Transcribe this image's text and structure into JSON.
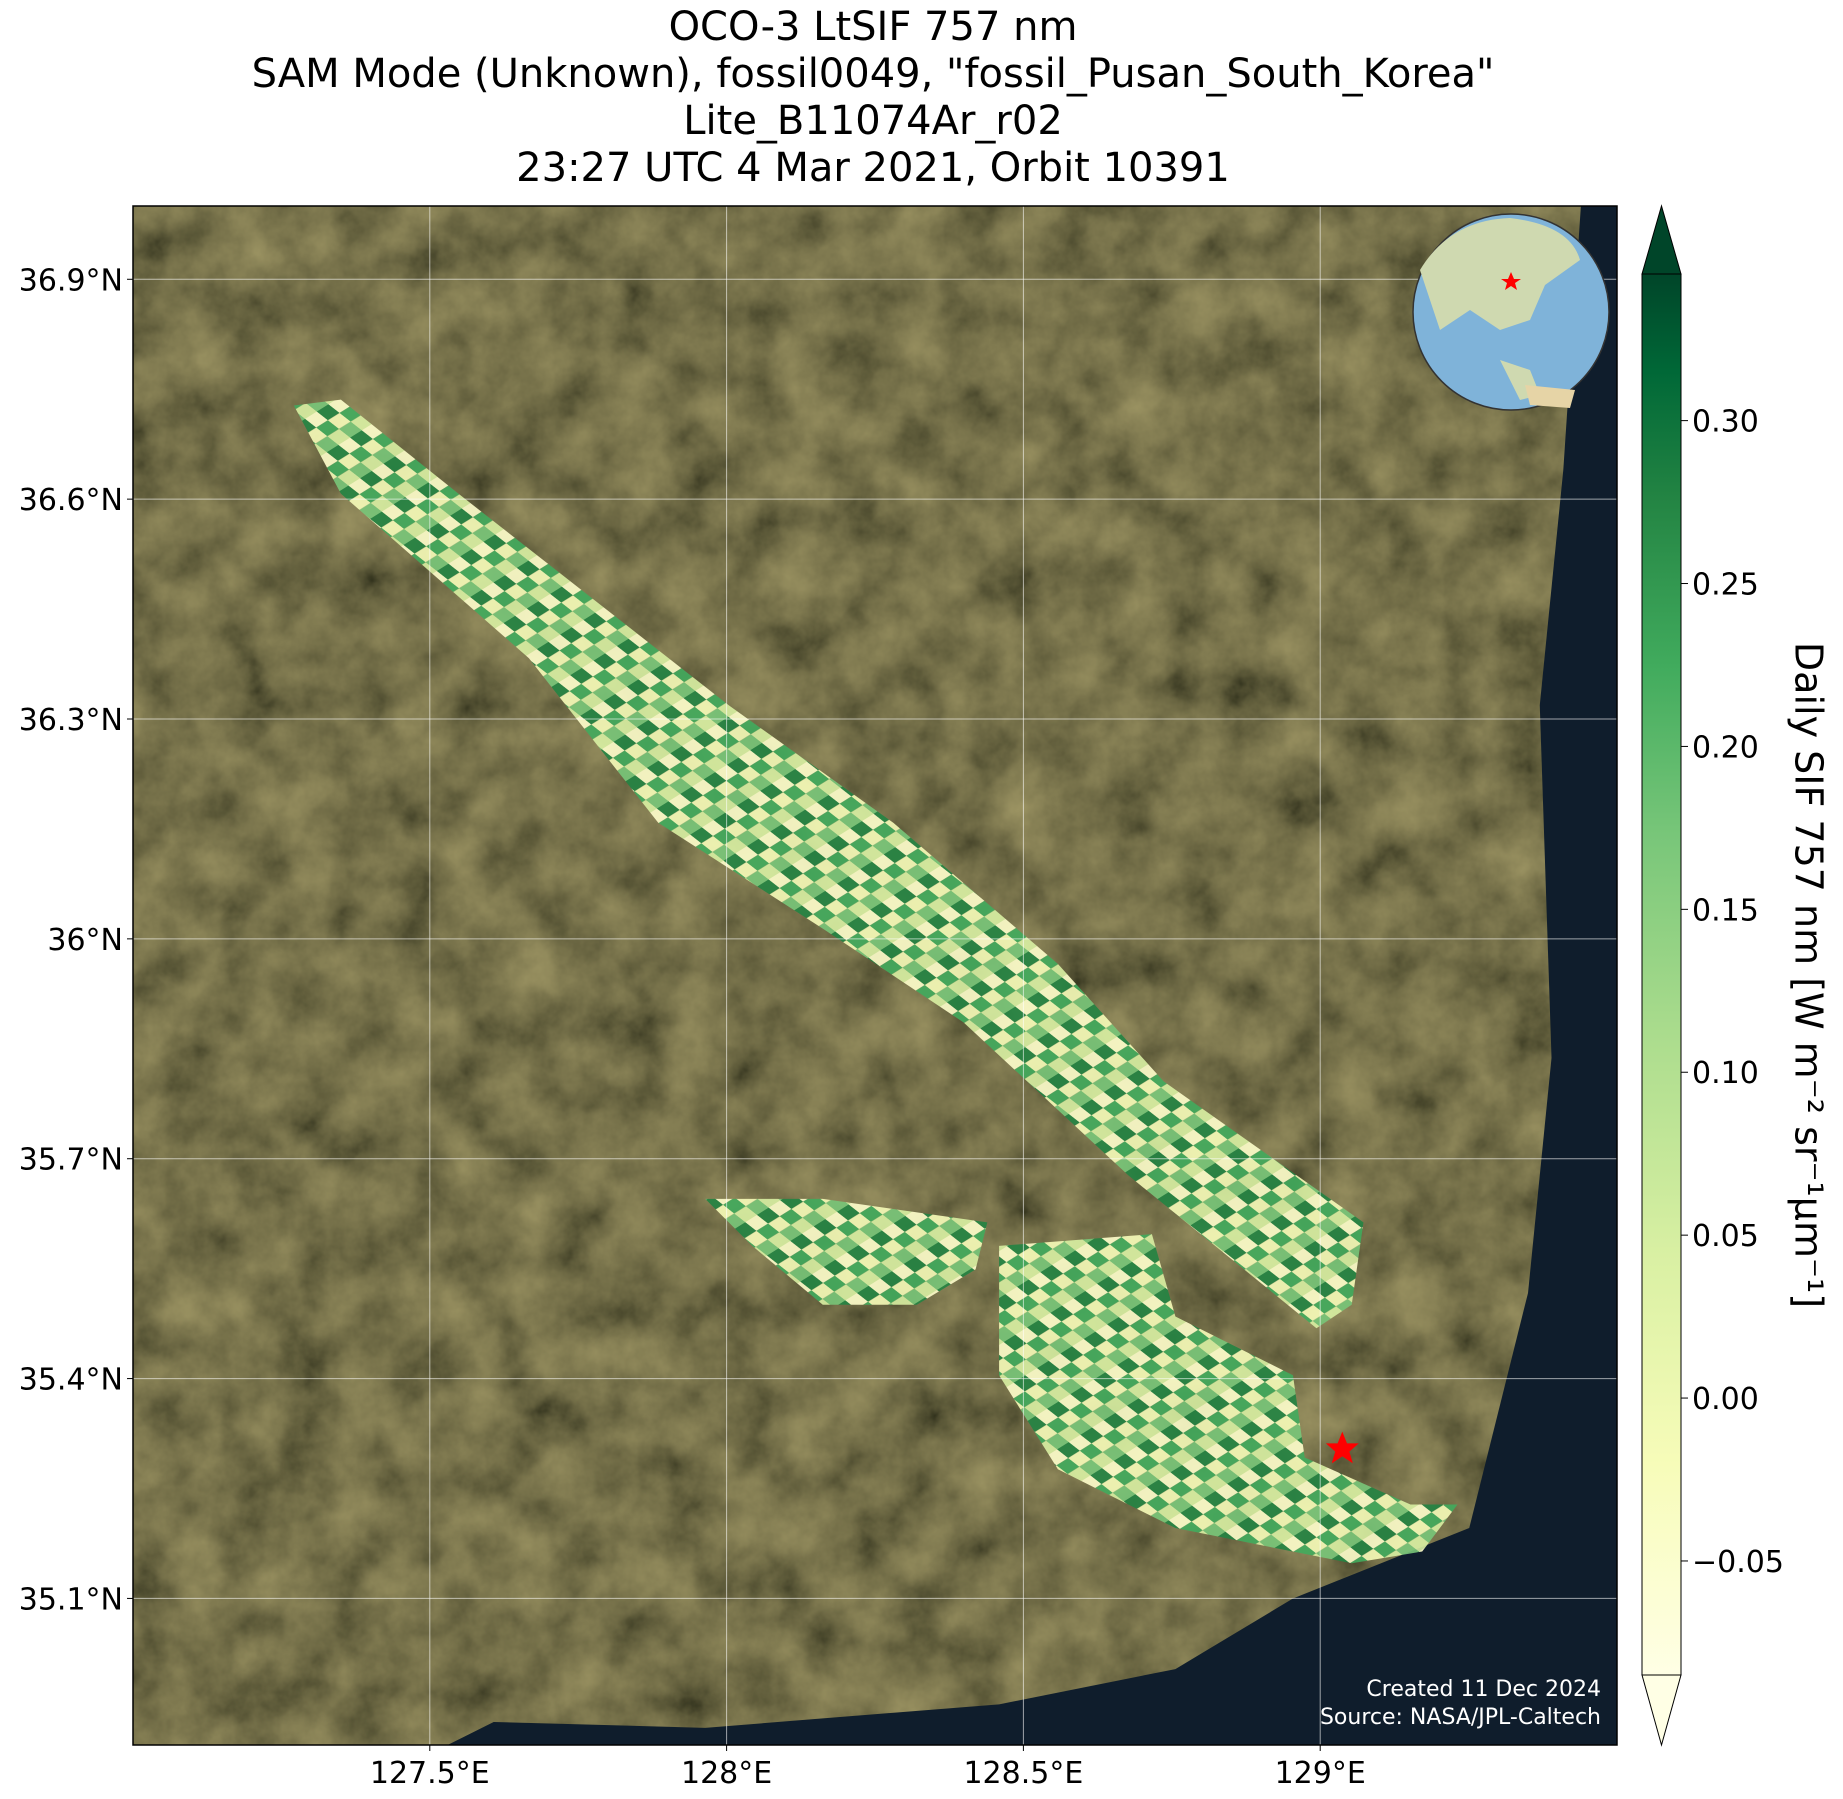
{
  "title": [
    "OCO-3 LtSIF 757 nm",
    "SAM Mode (Unknown), fossil0049, \"fossil_Pusan_South_Korea\"",
    "Lite_B11074Ar_r02",
    "23:27 UTC 4 Mar 2021, Orbit 10391"
  ],
  "map": {
    "xlim": [
      127.0,
      129.5
    ],
    "ylim": [
      34.9,
      37.0
    ],
    "xticks": [
      {
        "value": 127.5,
        "label": "127.5°E"
      },
      {
        "value": 128,
        "label": "128°E"
      },
      {
        "value": 128.5,
        "label": "128.5°E"
      },
      {
        "value": 129,
        "label": "129°E"
      }
    ],
    "yticks": [
      {
        "value": 35.1,
        "label": "35.1°N"
      },
      {
        "value": 35.4,
        "label": "35.4°N"
      },
      {
        "value": 35.7,
        "label": "35.7°N"
      },
      {
        "value": 36,
        "label": "36°N"
      },
      {
        "value": 36.3,
        "label": "36.3°N"
      },
      {
        "value": 36.6,
        "label": "36.6°N"
      },
      {
        "value": 36.9,
        "label": "36.9°N"
      }
    ],
    "grid": true
  },
  "colorbar": {
    "label": "Daily SIF 757 nm [W m⁻² sr⁻¹μm⁻¹]",
    "lim": [
      -0.085,
      0.345
    ],
    "ticks": [
      {
        "value": -0.05,
        "label": "−0.05"
      },
      {
        "value": 0,
        "label": "0.00"
      },
      0.05,
      {
        "value": 0.1,
        "label": "0.10"
      },
      0.15,
      {
        "value": 0.2,
        "label": "0.20"
      },
      0.25,
      {
        "value": 0.3,
        "label": "0.30"
      }
    ]
  },
  "credits": [
    "Created 11 Dec 2024",
    "Source: NASA/JPL-Caltech"
  ]
}
